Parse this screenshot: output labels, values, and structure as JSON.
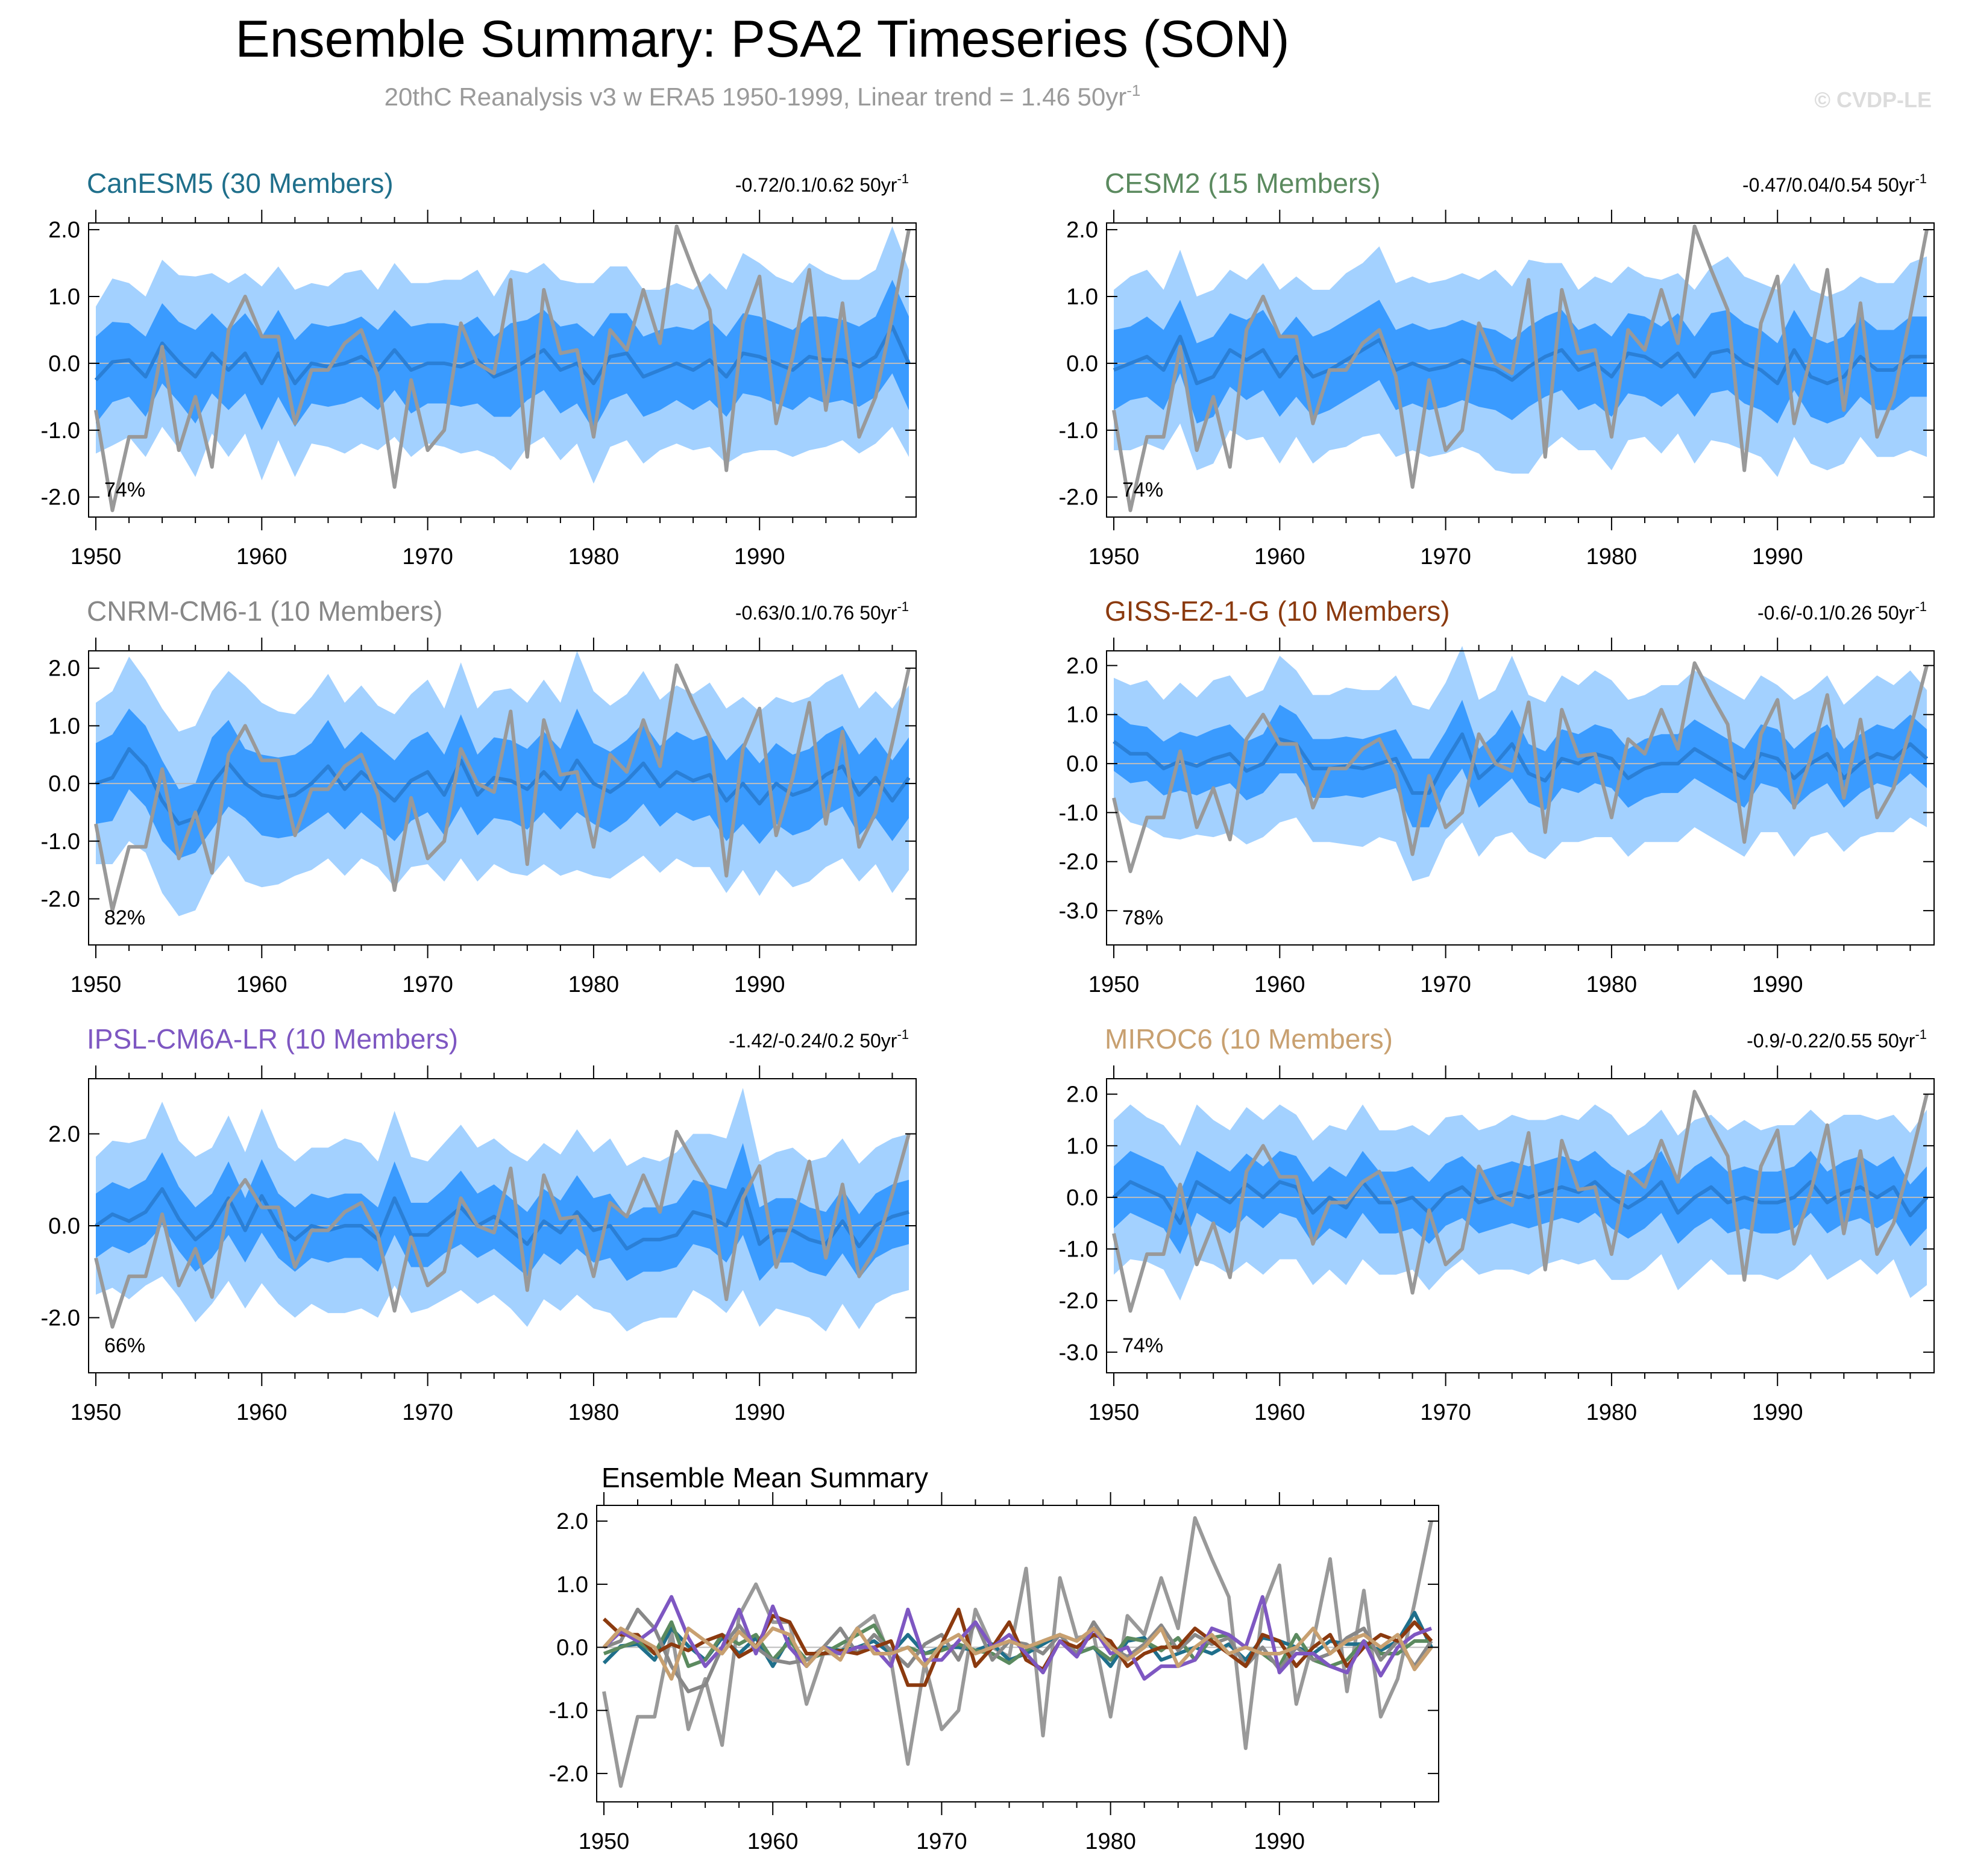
{
  "header": {
    "title": "Ensemble Summary: PSA2 Timeseries (SON)",
    "subtitle": "20thC Reanalysis v3 w ERA5 1950-1999, Linear trend = 1.46 50yr",
    "subtitle_exp": "-1",
    "watermark": "© CVDP-LE"
  },
  "colors": {
    "band_outer": "#a3d1ff",
    "band_inner": "#3a9bff",
    "mean_line": "#2a7fd6",
    "obs_line": "#999999",
    "zero_line": "#bdbdbd"
  },
  "chart_data": {
    "type": "line",
    "x_ticks": [
      "1950",
      "1960",
      "1970",
      "1980",
      "1990"
    ],
    "observations": {
      "name": "20thC Reanalysis v3 w ERA5",
      "years_start": 1950,
      "values": [
        -0.7,
        -2.2,
        -1.1,
        -1.1,
        0.25,
        -1.3,
        -0.5,
        -1.55,
        0.5,
        1.0,
        0.4,
        0.4,
        -0.9,
        -0.1,
        -0.1,
        0.3,
        0.5,
        -0.2,
        -1.85,
        -0.25,
        -1.3,
        -1.0,
        0.6,
        0.0,
        -0.15,
        1.25,
        -1.4,
        1.1,
        0.15,
        0.2,
        -1.1,
        0.5,
        0.2,
        1.1,
        0.3,
        2.05,
        1.4,
        0.8,
        -1.6,
        0.6,
        1.3,
        -0.9,
        0.1,
        1.4,
        -0.7,
        0.9,
        -1.1,
        -0.5,
        0.7,
        2.0
      ]
    },
    "panels": [
      {
        "name": "CanESM5 (30 Members)",
        "color": "#1f6f8b",
        "range_text": "-0.72/0.1/0.62 50yr",
        "range_exp": "-1",
        "pct": "74%",
        "y_ticks": [
          "2.0",
          "1.0",
          "0.0",
          "-1.0",
          "-2.0"
        ],
        "ylim": [
          -2.3,
          2.1
        ],
        "mean": [
          -0.25,
          0.02,
          0.05,
          -0.2,
          0.3,
          0.02,
          -0.2,
          0.15,
          -0.1,
          0.15,
          -0.3,
          0.15,
          -0.3,
          0.0,
          -0.05,
          0.0,
          0.1,
          -0.1,
          0.2,
          -0.1,
          0.0,
          0.0,
          -0.05,
          0.05,
          -0.2,
          -0.1,
          0.05,
          0.2,
          -0.1,
          0.0,
          -0.3,
          0.1,
          0.15,
          -0.2,
          -0.1,
          0.0,
          -0.1,
          0.05,
          -0.2,
          0.15,
          0.1,
          0.0,
          -0.1,
          0.1,
          0.05,
          0.05,
          -0.05,
          0.1,
          0.55,
          0.0
        ],
        "inner_hw": [
          0.65,
          0.6,
          0.55,
          0.6,
          0.6,
          0.6,
          0.7,
          0.6,
          0.6,
          0.6,
          0.7,
          0.65,
          0.65,
          0.6,
          0.6,
          0.6,
          0.6,
          0.6,
          0.6,
          0.65,
          0.6,
          0.6,
          0.6,
          0.65,
          0.6,
          0.7,
          0.6,
          0.6,
          0.65,
          0.6,
          0.7,
          0.65,
          0.6,
          0.6,
          0.6,
          0.55,
          0.6,
          0.6,
          0.6,
          0.6,
          0.6,
          0.6,
          0.6,
          0.6,
          0.65,
          0.6,
          0.6,
          0.6,
          0.7,
          0.7
        ],
        "outer_hw": [
          1.1,
          1.25,
          1.15,
          1.2,
          1.25,
          1.3,
          1.5,
          1.2,
          1.3,
          1.2,
          1.45,
          1.3,
          1.4,
          1.2,
          1.2,
          1.35,
          1.3,
          1.2,
          1.3,
          1.3,
          1.2,
          1.25,
          1.3,
          1.35,
          1.2,
          1.5,
          1.3,
          1.3,
          1.35,
          1.2,
          1.5,
          1.35,
          1.3,
          1.3,
          1.2,
          1.2,
          1.2,
          1.3,
          1.3,
          1.5,
          1.4,
          1.3,
          1.3,
          1.4,
          1.3,
          1.2,
          1.3,
          1.3,
          1.5,
          1.4
        ]
      },
      {
        "name": "CESM2 (15 Members)",
        "color": "#5b8a5f",
        "range_text": "-0.47/0.04/0.54 50yr",
        "range_exp": "-1",
        "pct": "74%",
        "y_ticks": [
          "2.0",
          "1.0",
          "0.0",
          "-1.0",
          "-2.0"
        ],
        "ylim": [
          -2.3,
          2.1
        ],
        "mean": [
          -0.1,
          0.0,
          0.1,
          -0.1,
          0.4,
          -0.3,
          -0.2,
          0.2,
          0.05,
          0.2,
          -0.2,
          0.1,
          -0.2,
          -0.1,
          0.05,
          0.2,
          0.35,
          -0.1,
          0.0,
          -0.1,
          -0.05,
          0.05,
          -0.05,
          -0.1,
          -0.25,
          -0.05,
          0.1,
          0.2,
          -0.1,
          0.0,
          -0.2,
          0.15,
          0.1,
          -0.05,
          0.15,
          -0.2,
          0.15,
          0.2,
          0.0,
          -0.1,
          -0.3,
          0.2,
          -0.2,
          -0.3,
          -0.2,
          0.1,
          -0.1,
          -0.1,
          0.1,
          0.1
        ],
        "inner_hw": [
          0.6,
          0.55,
          0.6,
          0.6,
          0.55,
          0.6,
          0.6,
          0.55,
          0.6,
          0.6,
          0.6,
          0.6,
          0.6,
          0.6,
          0.6,
          0.6,
          0.6,
          0.6,
          0.6,
          0.6,
          0.6,
          0.6,
          0.6,
          0.6,
          0.6,
          0.6,
          0.6,
          0.6,
          0.6,
          0.6,
          0.6,
          0.6,
          0.6,
          0.6,
          0.6,
          0.6,
          0.6,
          0.6,
          0.6,
          0.6,
          0.6,
          0.6,
          0.6,
          0.6,
          0.6,
          0.6,
          0.6,
          0.6,
          0.6,
          0.6
        ],
        "outer_hw": [
          1.2,
          1.3,
          1.3,
          1.2,
          1.3,
          1.3,
          1.3,
          1.2,
          1.2,
          1.3,
          1.3,
          1.2,
          1.3,
          1.2,
          1.3,
          1.3,
          1.4,
          1.3,
          1.3,
          1.3,
          1.3,
          1.3,
          1.3,
          1.5,
          1.4,
          1.6,
          1.4,
          1.3,
          1.2,
          1.3,
          1.4,
          1.3,
          1.2,
          1.3,
          1.2,
          1.3,
          1.3,
          1.4,
          1.3,
          1.3,
          1.4,
          1.3,
          1.3,
          1.3,
          1.3,
          1.2,
          1.3,
          1.3,
          1.4,
          1.5
        ]
      },
      {
        "name": "CNRM-CM6-1 (10 Members)",
        "color": "#888888",
        "range_text": "-0.63/0.1/0.76 50yr",
        "range_exp": "-1",
        "pct": "82%",
        "y_ticks": [
          "2.0",
          "1.0",
          "0.0",
          "-1.0",
          "-2.0"
        ],
        "ylim": [
          -2.8,
          2.3
        ],
        "mean": [
          0.0,
          0.1,
          0.6,
          0.3,
          -0.3,
          -0.7,
          -0.6,
          0.0,
          0.35,
          0.0,
          -0.2,
          -0.25,
          -0.2,
          0.0,
          0.3,
          -0.1,
          0.2,
          -0.05,
          -0.3,
          0.05,
          0.2,
          -0.2,
          0.4,
          -0.2,
          0.1,
          0.05,
          -0.1,
          0.2,
          -0.1,
          0.4,
          0.0,
          -0.15,
          0.05,
          0.35,
          -0.05,
          0.2,
          0.05,
          0.15,
          -0.3,
          0.0,
          -0.35,
          0.0,
          -0.2,
          -0.1,
          0.15,
          0.3,
          -0.2,
          0.1,
          -0.3,
          0.1
        ],
        "inner_hw": [
          0.7,
          0.75,
          0.7,
          0.7,
          0.7,
          0.6,
          0.6,
          0.8,
          0.75,
          0.6,
          0.7,
          0.7,
          0.7,
          0.7,
          0.8,
          0.7,
          0.7,
          0.7,
          0.7,
          0.7,
          0.7,
          0.7,
          0.8,
          0.7,
          0.7,
          0.7,
          0.7,
          0.7,
          0.7,
          0.9,
          0.7,
          0.7,
          0.7,
          0.7,
          0.7,
          0.7,
          0.7,
          0.7,
          0.7,
          0.7,
          0.7,
          0.7,
          0.7,
          0.7,
          0.7,
          0.7,
          0.7,
          0.7,
          0.7,
          0.7
        ],
        "outer_hw": [
          1.4,
          1.5,
          1.6,
          1.5,
          1.6,
          1.6,
          1.6,
          1.6,
          1.6,
          1.7,
          1.6,
          1.5,
          1.4,
          1.5,
          1.6,
          1.5,
          1.5,
          1.4,
          1.5,
          1.5,
          1.6,
          1.5,
          1.7,
          1.5,
          1.5,
          1.6,
          1.5,
          1.6,
          1.5,
          1.9,
          1.6,
          1.5,
          1.5,
          1.6,
          1.5,
          1.5,
          1.5,
          1.6,
          1.6,
          1.5,
          1.6,
          1.5,
          1.6,
          1.6,
          1.6,
          1.6,
          1.5,
          1.5,
          1.6,
          1.6
        ]
      },
      {
        "name": "GISS-E2-1-G (10 Members)",
        "color": "#8b3a0f",
        "range_text": "-0.6/-0.1/0.26 50yr",
        "range_exp": "-1",
        "pct": "78%",
        "y_ticks": [
          "2.0",
          "1.0",
          "0.0",
          "-1.0",
          "-2.0",
          "-3.0"
        ],
        "ylim": [
          -3.7,
          2.3
        ],
        "mean": [
          0.45,
          0.2,
          0.2,
          -0.1,
          0.05,
          -0.05,
          0.1,
          0.2,
          -0.15,
          0.0,
          0.5,
          0.4,
          -0.1,
          -0.1,
          -0.05,
          -0.1,
          0.0,
          0.1,
          -0.6,
          -0.6,
          0.05,
          0.6,
          -0.3,
          0.0,
          0.4,
          -0.2,
          -0.35,
          0.1,
          0.0,
          0.2,
          0.1,
          -0.3,
          -0.1,
          0.0,
          0.0,
          0.3,
          0.1,
          -0.1,
          -0.3,
          0.2,
          0.1,
          -0.3,
          0.0,
          0.2,
          -0.3,
          0.0,
          0.2,
          0.1,
          0.4,
          0.1
        ],
        "inner_hw": [
          0.6,
          0.6,
          0.55,
          0.55,
          0.6,
          0.6,
          0.6,
          0.6,
          0.6,
          0.6,
          0.7,
          0.6,
          0.6,
          0.6,
          0.6,
          0.6,
          0.6,
          0.6,
          0.7,
          0.7,
          0.6,
          0.7,
          0.6,
          0.6,
          0.7,
          0.6,
          0.6,
          0.6,
          0.6,
          0.6,
          0.6,
          0.6,
          0.6,
          0.6,
          0.6,
          0.6,
          0.6,
          0.6,
          0.6,
          0.6,
          0.6,
          0.6,
          0.6,
          0.6,
          0.6,
          0.6,
          0.6,
          0.6,
          0.6,
          0.6
        ],
        "outer_hw": [
          1.3,
          1.4,
          1.5,
          1.4,
          1.6,
          1.4,
          1.6,
          1.6,
          1.5,
          1.5,
          1.7,
          1.5,
          1.5,
          1.5,
          1.6,
          1.6,
          1.5,
          1.7,
          1.8,
          1.7,
          1.6,
          1.8,
          1.6,
          1.5,
          1.8,
          1.6,
          1.6,
          1.7,
          1.6,
          1.7,
          1.6,
          1.6,
          1.5,
          1.6,
          1.6,
          1.6,
          1.6,
          1.6,
          1.6,
          1.6,
          1.5,
          1.6,
          1.5,
          1.6,
          1.5,
          1.5,
          1.6,
          1.5,
          1.5,
          1.4
        ]
      },
      {
        "name": "IPSL-CM6A-LR (10 Members)",
        "color": "#7e57c2",
        "range_text": "-1.42/-0.24/0.2 50yr",
        "range_exp": "-1",
        "pct": "66%",
        "y_ticks": [
          "2.0",
          "0.0",
          "-2.0"
        ],
        "ylim": [
          -3.2,
          3.2
        ],
        "mean": [
          0.0,
          0.25,
          0.1,
          0.3,
          0.8,
          0.15,
          -0.3,
          0.0,
          0.6,
          -0.1,
          0.65,
          0.0,
          -0.3,
          0.0,
          -0.1,
          0.0,
          0.0,
          -0.3,
          0.6,
          -0.2,
          -0.2,
          0.1,
          0.4,
          0.0,
          0.2,
          -0.1,
          -0.4,
          0.1,
          -0.15,
          0.3,
          -0.1,
          0.0,
          -0.5,
          -0.3,
          -0.3,
          -0.2,
          0.3,
          0.2,
          0.0,
          0.8,
          -0.4,
          -0.1,
          -0.1,
          -0.3,
          -0.4,
          0.1,
          -0.45,
          0.0,
          0.2,
          0.3
        ],
        "inner_hw": [
          0.7,
          0.7,
          0.7,
          0.7,
          0.8,
          0.7,
          0.7,
          0.7,
          0.8,
          0.7,
          0.8,
          0.7,
          0.7,
          0.7,
          0.7,
          0.7,
          0.7,
          0.7,
          0.8,
          0.7,
          0.7,
          0.7,
          0.8,
          0.7,
          0.7,
          0.7,
          0.7,
          0.7,
          0.7,
          0.8,
          0.7,
          0.7,
          0.7,
          0.7,
          0.7,
          0.7,
          0.7,
          0.7,
          0.8,
          1.0,
          0.8,
          0.7,
          0.7,
          0.7,
          0.7,
          0.7,
          0.7,
          0.7,
          0.7,
          0.7
        ],
        "outer_hw": [
          1.5,
          1.6,
          1.7,
          1.6,
          1.9,
          1.7,
          1.8,
          1.7,
          1.8,
          1.7,
          1.9,
          1.7,
          1.7,
          1.7,
          1.8,
          1.9,
          1.8,
          1.7,
          1.9,
          1.7,
          1.6,
          1.7,
          1.8,
          1.7,
          1.7,
          1.7,
          1.8,
          1.7,
          1.7,
          1.8,
          1.7,
          1.9,
          1.8,
          1.8,
          1.7,
          1.8,
          1.7,
          1.8,
          1.9,
          2.2,
          1.8,
          1.7,
          1.8,
          1.7,
          1.9,
          1.8,
          1.8,
          1.7,
          1.7,
          1.7
        ]
      },
      {
        "name": "MIROC6 (10 Members)",
        "color": "#c8a070",
        "range_text": "-0.9/-0.22/0.55 50yr",
        "range_exp": "-1",
        "pct": "74%",
        "y_ticks": [
          "2.0",
          "1.0",
          "0.0",
          "-1.0",
          "-2.0",
          "-3.0"
        ],
        "ylim": [
          -3.4,
          2.3
        ],
        "mean": [
          0.0,
          0.3,
          0.15,
          0.0,
          -0.5,
          0.3,
          0.1,
          -0.1,
          0.25,
          0.0,
          0.3,
          0.2,
          -0.3,
          0.0,
          -0.2,
          0.3,
          -0.1,
          -0.1,
          0.0,
          -0.3,
          0.05,
          0.2,
          -0.1,
          0.0,
          0.1,
          0.0,
          0.1,
          0.2,
          0.1,
          0.3,
          0.0,
          -0.2,
          0.0,
          0.3,
          -0.3,
          0.0,
          0.2,
          -0.1,
          0.0,
          -0.1,
          -0.1,
          0.0,
          0.3,
          -0.1,
          0.1,
          0.2,
          0.0,
          0.2,
          -0.35,
          0.0
        ],
        "inner_hw": [
          0.6,
          0.6,
          0.6,
          0.6,
          0.6,
          0.6,
          0.6,
          0.6,
          0.6,
          0.6,
          0.6,
          0.6,
          0.6,
          0.6,
          0.6,
          0.6,
          0.6,
          0.6,
          0.6,
          0.6,
          0.6,
          0.6,
          0.6,
          0.6,
          0.6,
          0.6,
          0.6,
          0.6,
          0.6,
          0.6,
          0.6,
          0.6,
          0.6,
          0.6,
          0.6,
          0.6,
          0.6,
          0.6,
          0.6,
          0.6,
          0.6,
          0.6,
          0.6,
          0.6,
          0.6,
          0.6,
          0.6,
          0.6,
          0.6,
          0.6
        ],
        "outer_hw": [
          1.5,
          1.5,
          1.4,
          1.4,
          1.5,
          1.5,
          1.4,
          1.4,
          1.5,
          1.5,
          1.5,
          1.4,
          1.4,
          1.4,
          1.5,
          1.5,
          1.4,
          1.4,
          1.4,
          1.5,
          1.5,
          1.4,
          1.4,
          1.4,
          1.5,
          1.5,
          1.4,
          1.4,
          1.4,
          1.5,
          1.6,
          1.4,
          1.4,
          1.4,
          1.5,
          1.5,
          1.4,
          1.4,
          1.5,
          1.4,
          1.5,
          1.4,
          1.4,
          1.5,
          1.5,
          1.4,
          1.5,
          1.4,
          1.6,
          1.7
        ]
      }
    ],
    "summary": {
      "title": "Ensemble Mean Summary",
      "y_ticks": [
        "2.0",
        "1.0",
        "0.0",
        "-1.0",
        "-2.0"
      ],
      "ylim": [
        -2.45,
        2.25
      ]
    }
  }
}
